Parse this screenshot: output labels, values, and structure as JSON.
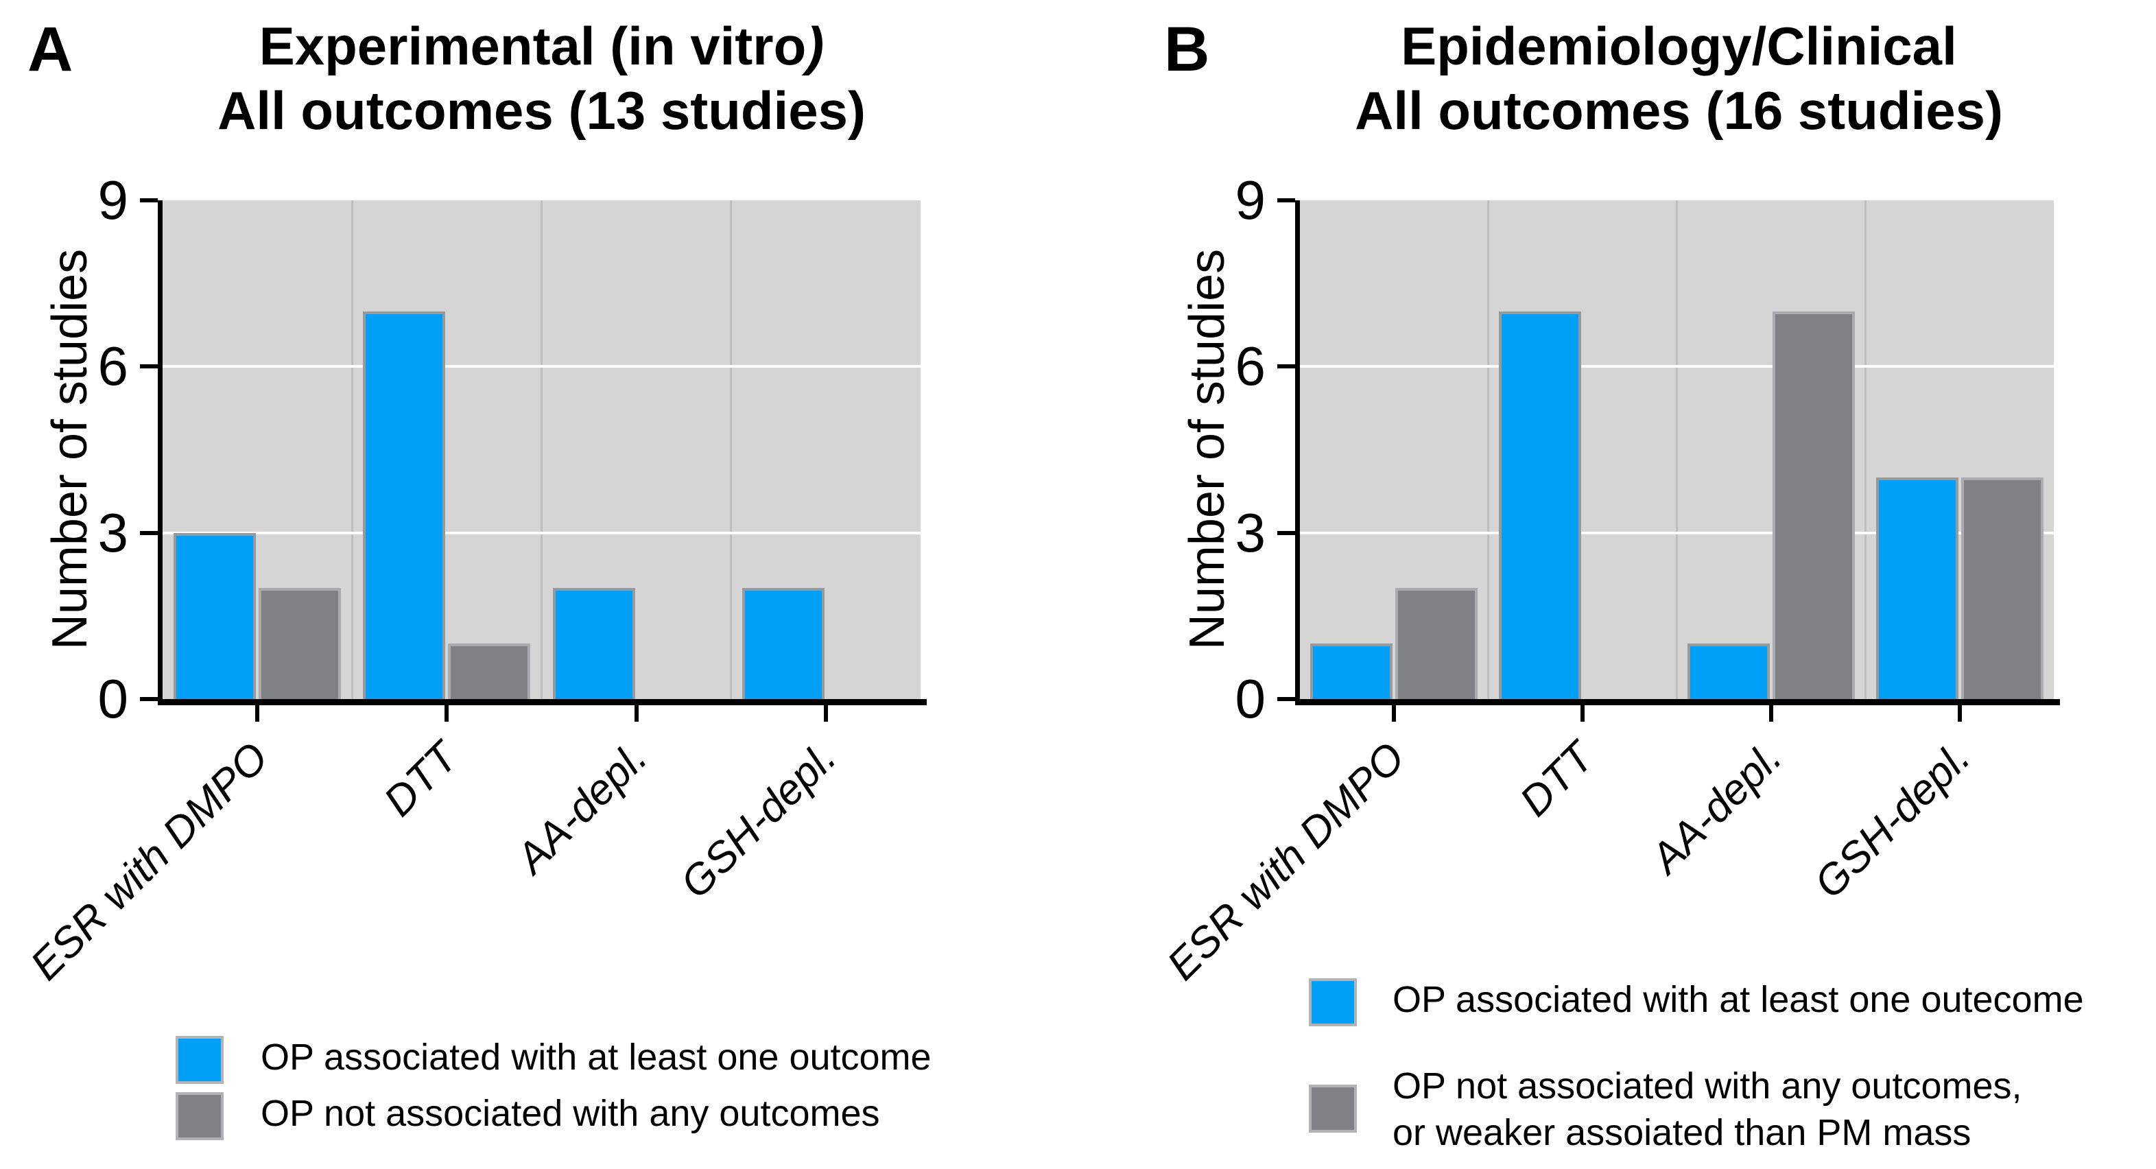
{
  "figure": {
    "panels": [
      {
        "label": "A",
        "title_line1": "Experimental (in vitro",
        "title_line1_italic": ")",
        "title_line2": "All outcomes (13 studies)",
        "ylabel": "Number of studies",
        "legend": [
          {
            "color_key": "blue",
            "lines": [
              "OP associated with at least one outcome"
            ]
          },
          {
            "color_key": "gray",
            "lines": [
              "OP not associated with any outcomes"
            ]
          }
        ]
      },
      {
        "label": "B",
        "title_line1": "Epidemiology/Clinical",
        "title_line1_italic": "",
        "title_line2": "All outcomes (16 studies)",
        "ylabel": "Number of studies",
        "legend": [
          {
            "color_key": "blue",
            "lines": [
              "OP associated with at least one outecome"
            ]
          },
          {
            "color_key": "gray",
            "lines": [
              "OP not associated with any outcomes,",
              "or weaker assoiated than PM mass"
            ]
          }
        ]
      }
    ],
    "colors": {
      "bar_blue": "#00a0f8",
      "bar_blue_border": "#98999b",
      "bar_gray": "#808184",
      "bar_gray_border": "#a9abae",
      "plot_background": "#d5d5d5",
      "gridline": "#ffffff",
      "divider": "#bfbfbf",
      "axis": "#000000"
    }
  },
  "chart_data": [
    {
      "type": "bar",
      "title": "Experimental (in vitro) - All outcomes (13 studies)",
      "categories": [
        "ESR with DMPO",
        "DTT",
        "AA-depl.",
        "GSH-depl."
      ],
      "series": [
        {
          "name": "OP associated with at least one outcome",
          "color": "#00a0f8",
          "values": [
            3,
            7,
            2,
            2
          ]
        },
        {
          "name": "OP not associated with any outcomes",
          "color": "#808184",
          "values": [
            2,
            1,
            0,
            0
          ]
        }
      ],
      "xlabel": "",
      "ylabel": "Number of studies",
      "ylim": [
        0,
        9
      ],
      "yticks": [
        0,
        3,
        6,
        9
      ],
      "grid": true,
      "legend_position": "bottom"
    },
    {
      "type": "bar",
      "title": "Epidemiology/Clinical - All outcomes (16 studies)",
      "categories": [
        "ESR with DMPO",
        "DTT",
        "AA-depl.",
        "GSH-depl."
      ],
      "series": [
        {
          "name": "OP associated with at least one outecome",
          "color": "#00a0f8",
          "values": [
            1,
            7,
            1,
            4
          ]
        },
        {
          "name": "OP not associated with any outcomes, or weaker assoiated than PM mass",
          "color": "#808184",
          "values": [
            2,
            0,
            7,
            4
          ]
        }
      ],
      "xlabel": "",
      "ylabel": "Number of studies",
      "ylim": [
        0,
        9
      ],
      "yticks": [
        0,
        3,
        6,
        9
      ],
      "grid": true,
      "legend_position": "bottom"
    }
  ]
}
